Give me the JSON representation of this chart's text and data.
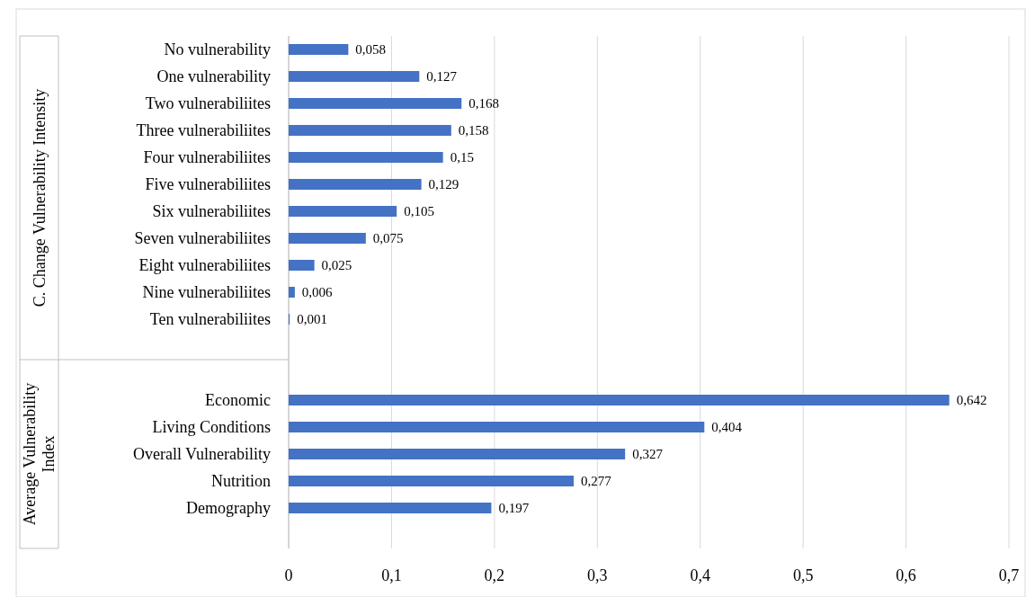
{
  "chart_data": {
    "type": "bar",
    "orientation": "horizontal",
    "categories": [
      "No vulnerability",
      "One vulnerability",
      "Two vulnerabiliites",
      "Three vulnerabiliites",
      "Four vulnerabiliites",
      "Five vulnerabiliites",
      "Six vulnerabiliites",
      "Seven vulnerabiliites",
      "Eight vulnerabiliites",
      "Nine vulnerabiliites",
      "Ten vulnerabiliites",
      null,
      null,
      "Economic",
      "Living Conditions",
      "Overall Vulnerability",
      "Nutrition",
      "Demography",
      null
    ],
    "values": [
      0.058,
      0.127,
      0.168,
      0.158,
      0.15,
      0.129,
      0.105,
      0.075,
      0.025,
      0.006,
      0.001,
      null,
      null,
      0.642,
      0.404,
      0.327,
      0.277,
      0.197,
      null
    ],
    "value_labels": [
      "0,058",
      "0,127",
      "0,168",
      "0,158",
      "0,15",
      "0,129",
      "0,105",
      "0,075",
      "0,025",
      "0,006",
      "0,001",
      null,
      null,
      "0,642",
      "0,404",
      "0,327",
      "0,277",
      "0,197",
      null
    ],
    "color": "#4472c4",
    "xlim": [
      0,
      0.7
    ],
    "xticks": [
      {
        "value": 0,
        "label": "0"
      },
      {
        "value": 0.1,
        "label": "0,1"
      },
      {
        "value": 0.2,
        "label": "0,2"
      },
      {
        "value": 0.3,
        "label": "0,3"
      },
      {
        "value": 0.4,
        "label": "0,4"
      },
      {
        "value": 0.5,
        "label": "0,5"
      },
      {
        "value": 0.6,
        "label": "0,6"
      },
      {
        "value": 0.7,
        "label": "0,7"
      }
    ],
    "grid": "x",
    "annotations": [
      "C. Change Vulnerability Intensity",
      "Average Vulnerability Index"
    ]
  }
}
